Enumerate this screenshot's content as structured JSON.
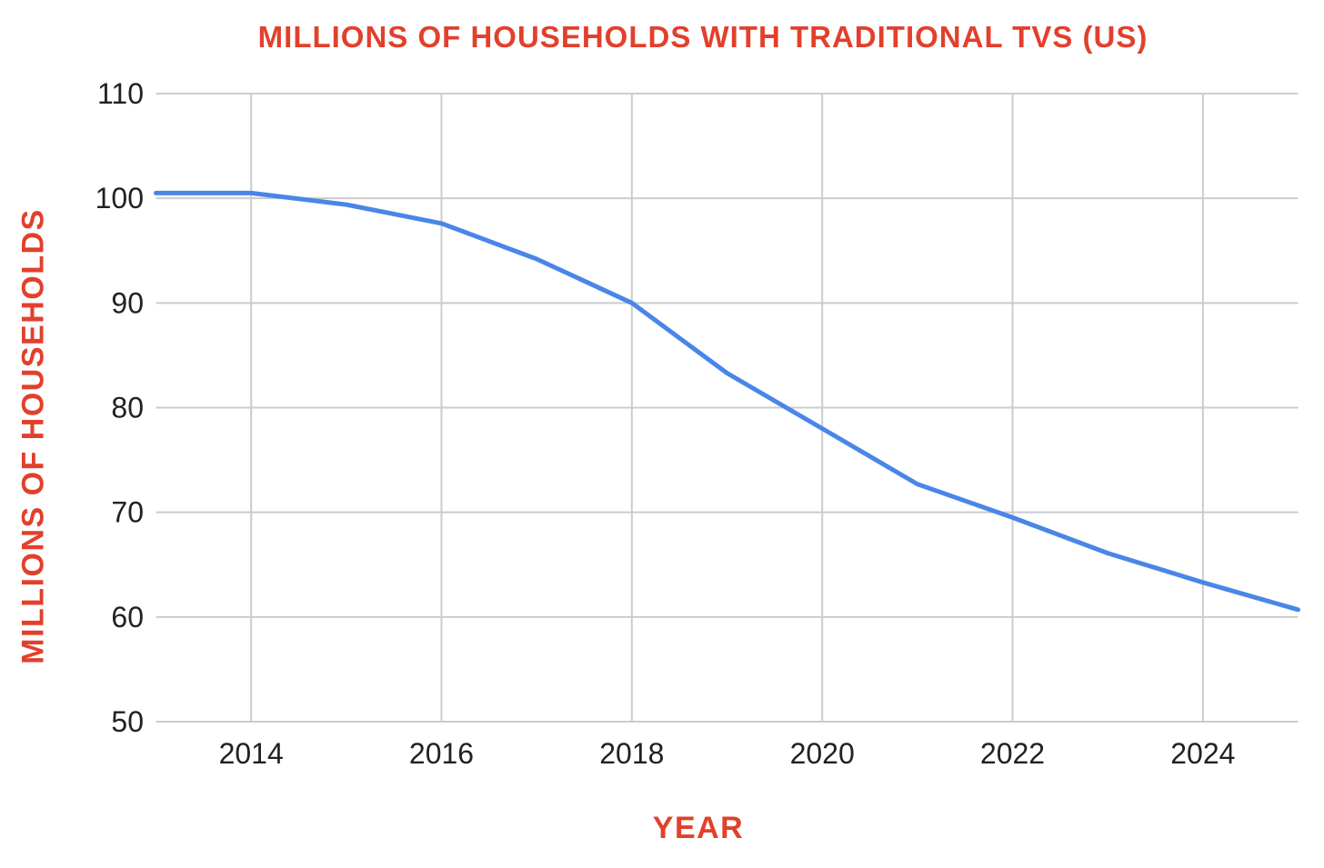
{
  "page": {
    "background": "#ffffff"
  },
  "chart_data": {
    "type": "line",
    "title": "MILLIONS OF HOUSEHOLDS WITH TRADITIONAL TVS (US)",
    "xlabel": "YEAR",
    "ylabel": "MILLIONS OF HOUSEHOLDS",
    "x": [
      2013,
      2014,
      2015,
      2016,
      2017,
      2018,
      2019,
      2020,
      2021,
      2022,
      2023,
      2024,
      2025
    ],
    "values": [
      100.5,
      100.5,
      99.4,
      97.6,
      94.2,
      90.0,
      83.3,
      78.0,
      72.7,
      69.5,
      66.1,
      63.3,
      60.7
    ],
    "xlim": [
      2013,
      2025
    ],
    "ylim": [
      50,
      110
    ],
    "x_ticks": [
      2014,
      2016,
      2018,
      2020,
      2022,
      2024
    ],
    "y_ticks": [
      110,
      100,
      90,
      80,
      70,
      60,
      50
    ],
    "grid": true,
    "legend": "none",
    "colors": {
      "line": "#4a86e8",
      "accent_text": "#e2402c",
      "grid": "#cccccc",
      "tick_text": "#212121",
      "background": "#ffffff"
    }
  }
}
